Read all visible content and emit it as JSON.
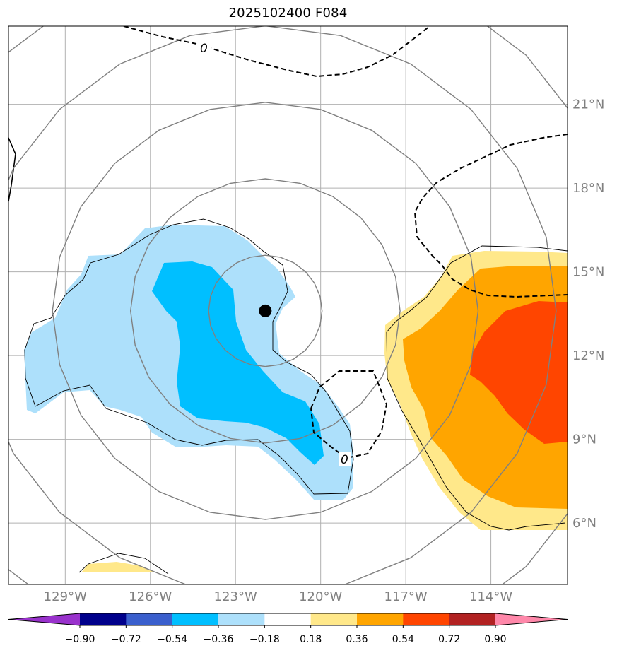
{
  "title": "2025102400 F084",
  "map": {
    "lon_range": [
      -131.0,
      -111.3
    ],
    "lat_range": [
      3.8,
      23.8
    ],
    "lon_ticks": [
      {
        "value": -129,
        "label": "129°W"
      },
      {
        "value": -126,
        "label": "126°W"
      },
      {
        "value": -123,
        "label": "123°W"
      },
      {
        "value": -120,
        "label": "120°W"
      },
      {
        "value": -117,
        "label": "117°W"
      },
      {
        "value": -114,
        "label": "114°W"
      }
    ],
    "lat_ticks": [
      {
        "value": 21,
        "label": "21°N"
      },
      {
        "value": 18,
        "label": "18°N"
      },
      {
        "value": 15,
        "label": "15°N"
      },
      {
        "value": 12,
        "label": "12°N"
      },
      {
        "value": 9,
        "label": "9°N"
      },
      {
        "value": 6,
        "label": "6°N"
      }
    ],
    "storm_center": {
      "lon": -121.95,
      "lat": 13.6
    },
    "range_rings_deg": [
      2.0,
      4.75,
      7.5,
      10.25,
      13.0
    ],
    "zero_contour_label": "0",
    "colors": {
      "light_blue": "#ade0fb",
      "deep_sky_blue": "#00bfff",
      "light_yellow": "#ffe88a",
      "orange": "#ffa500",
      "orange_red": "#ff4500",
      "ring": "#808080",
      "grid": "#b0b0b0"
    }
  },
  "colorbar": {
    "bounds": [
      "−0.90",
      "−0.72",
      "−0.54",
      "−0.36",
      "−0.18",
      "0.18",
      "0.36",
      "0.54",
      "0.72",
      "0.90"
    ],
    "colors": [
      "#9932cc",
      "#00008b",
      "#3a5fcd",
      "#00bfff",
      "#ade0fb",
      "#ffffff",
      "#ffe88a",
      "#ffa500",
      "#ff4500",
      "#b22222",
      "#ff88aa"
    ]
  }
}
